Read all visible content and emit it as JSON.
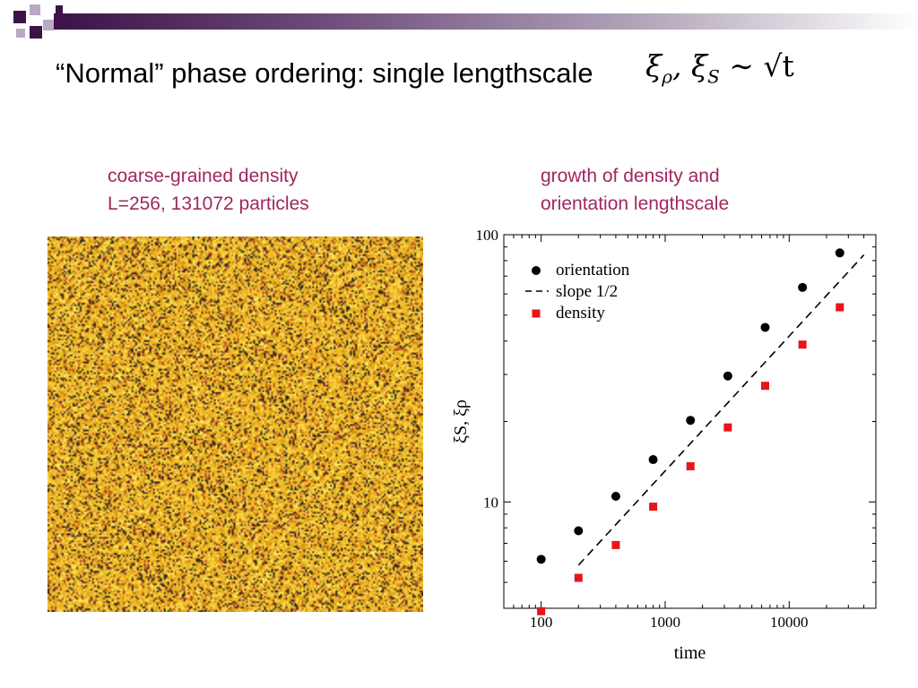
{
  "slide": {
    "title": "“Normal” phase ordering: single lengthscale",
    "title_math": {
      "xi": "ξ",
      "rho_sub": "ρ",
      "sep": ", ",
      "s_sub": "S",
      "sim": " ∼ ",
      "sqrt_t": "√t"
    },
    "left_caption_line1": "coarse-grained density",
    "left_caption_line2": "L=256, 131072 particles",
    "right_caption_line1": "growth of density and",
    "right_caption_line2": "orientation lengthscale",
    "caption_color": "#a0275f"
  },
  "density_map": {
    "colors": [
      "#f2c12e",
      "#e9a81a",
      "#f7d84a",
      "#c98a14",
      "#fff05a",
      "#a5402a",
      "#2a2320"
    ]
  },
  "chart_data": {
    "type": "scatter",
    "xscale": "log",
    "yscale": "log",
    "xlim": [
      50,
      50000
    ],
    "ylim": [
      4,
      100
    ],
    "xticks": [
      100,
      1000,
      10000
    ],
    "xtick_labels": [
      "100",
      "1000",
      "10000"
    ],
    "yticks": [
      10,
      100
    ],
    "ytick_labels": [
      "10",
      "100"
    ],
    "xlabel": "time",
    "ylabel": "ξS, ξρ",
    "legend_position": "top-left",
    "series": [
      {
        "name": "orientation",
        "marker": "circle",
        "color": "#000000",
        "x": [
          100,
          200,
          400,
          800,
          1600,
          3200,
          6400,
          12800,
          25600
        ],
        "y": [
          6.1,
          7.8,
          10.5,
          14.4,
          20.2,
          29.6,
          45.0,
          63.5,
          85.5
        ]
      },
      {
        "name": "slope 1/2",
        "marker": "dashed-line",
        "color": "#000000",
        "x": [
          200,
          40000
        ],
        "y": [
          5.8,
          84
        ]
      },
      {
        "name": "density",
        "marker": "square",
        "color": "#e8141c",
        "x": [
          100,
          200,
          400,
          800,
          1600,
          3200,
          6400,
          12800,
          25600
        ],
        "y": [
          3.9,
          5.2,
          6.9,
          9.6,
          13.6,
          19.0,
          27.2,
          38.8,
          53.5
        ]
      }
    ]
  }
}
